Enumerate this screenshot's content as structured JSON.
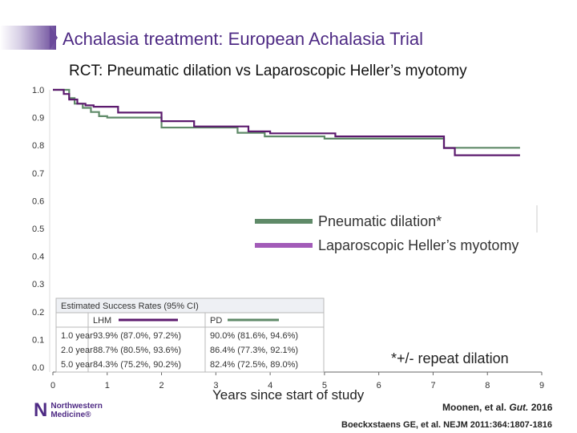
{
  "slide": {
    "title": "Achalasia treatment:  European Achalasia Trial",
    "subtitle": "RCT: Pneumatic dilation vs Laparoscopic Heller’s myotomy",
    "footnote": "*+/- repeat dilation",
    "logo_line1": "Northwestern",
    "logo_line2": "Medicine®",
    "citation1_prefix": "Moonen, et al.",
    "citation1_journal": "Gut.",
    "citation1_year": "2016",
    "citation2": "Boeckxstaens GE, et al. NEJM 2011:364:1807-1816"
  },
  "chart_data": {
    "type": "line",
    "subtype": "kaplan-meier",
    "xlabel": "Years since start of study",
    "ylabel": "",
    "xlim": [
      0,
      9
    ],
    "ylim": [
      0.0,
      1.0
    ],
    "x_ticks": [
      "0",
      "1",
      "2",
      "3",
      "4",
      "5",
      "6",
      "7",
      "8",
      "9"
    ],
    "y_ticks": [
      "0.0",
      "0.1",
      "0.2",
      "0.3",
      "0.4",
      "0.5",
      "0.6",
      "0.7",
      "0.8",
      "0.9",
      "1.0"
    ],
    "legend_position": "right",
    "series": [
      {
        "name": "Pneumatic dilation*",
        "short": "PD",
        "color": "#5f8a68",
        "points": [
          [
            0,
            1.0
          ],
          [
            0.2,
            1.0
          ],
          [
            0.3,
            0.97
          ],
          [
            0.4,
            0.95
          ],
          [
            0.55,
            0.935
          ],
          [
            0.7,
            0.92
          ],
          [
            0.85,
            0.905
          ],
          [
            1.0,
            0.9
          ],
          [
            2.0,
            0.864
          ],
          [
            2.9,
            0.864
          ],
          [
            3.4,
            0.845
          ],
          [
            3.9,
            0.832
          ],
          [
            5.0,
            0.824
          ],
          [
            7.2,
            0.791
          ],
          [
            8.6,
            0.791
          ]
        ]
      },
      {
        "name": "Laparoscopic Heller’s myotomy",
        "short": "LHM",
        "color": "#5c1a6e",
        "points": [
          [
            0,
            1.0
          ],
          [
            0.15,
            1.0
          ],
          [
            0.2,
            0.985
          ],
          [
            0.3,
            0.965
          ],
          [
            0.45,
            0.95
          ],
          [
            0.6,
            0.944
          ],
          [
            0.75,
            0.939
          ],
          [
            1.2,
            0.918
          ],
          [
            2.0,
            0.887
          ],
          [
            2.6,
            0.868
          ],
          [
            3.6,
            0.85
          ],
          [
            4.0,
            0.843
          ],
          [
            5.2,
            0.832
          ],
          [
            7.2,
            0.79
          ],
          [
            7.4,
            0.764
          ],
          [
            8.6,
            0.764
          ]
        ]
      }
    ],
    "table": {
      "title": "Estimated Success Rates (95% CI)",
      "columns": [
        "LHM",
        "PD"
      ],
      "rows": [
        {
          "label": "1.0 year",
          "lhm": "93.9% (87.0%, 97.2%)",
          "pd": "90.0% (81.6%, 94.6%)"
        },
        {
          "label": "2.0 year",
          "lhm": "88.7% (80.5%, 93.6%)",
          "pd": "86.4% (77.3%, 92.1%)"
        },
        {
          "label": "5.0 year",
          "lhm": "84.3% (75.2%, 90.2%)",
          "pd": "82.4% (72.5%, 89.0%)"
        }
      ]
    }
  }
}
